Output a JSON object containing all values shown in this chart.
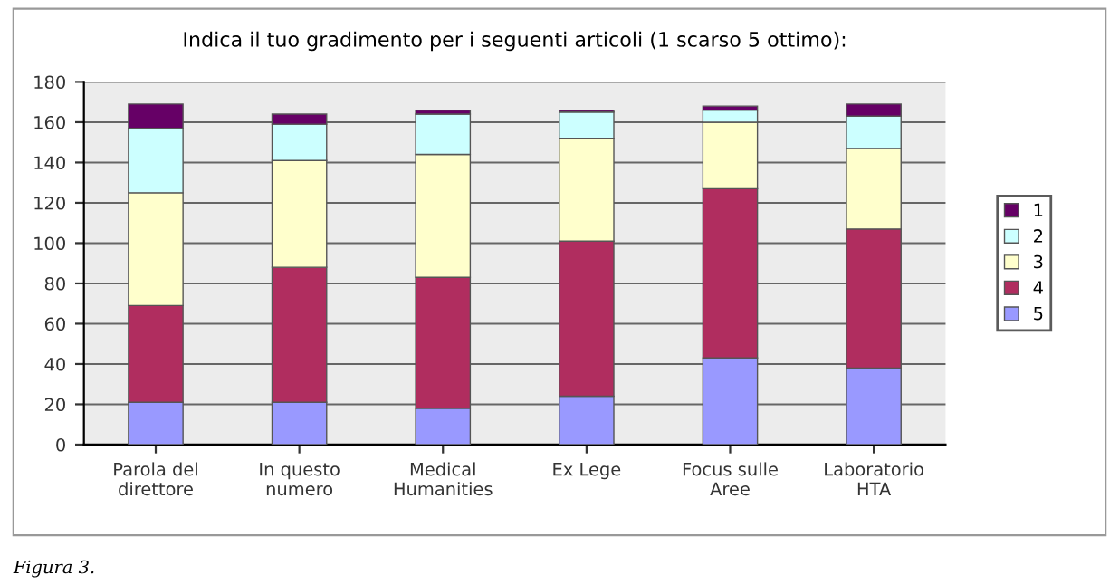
{
  "chart_data": {
    "type": "bar",
    "title": "Indica il tuo gradimento per i seguenti articoli (1 scarso 5 ottimo):",
    "categories": [
      "Parola del\ndirettore",
      "In questo\nnumero",
      "Medical\nHumanities",
      "Ex Lege",
      "Focus sulle\nAree",
      "Laboratorio\nHTA"
    ],
    "series": [
      {
        "name": "5",
        "color": "#9999ff",
        "values": [
          21,
          21,
          18,
          24,
          43,
          38
        ]
      },
      {
        "name": "4",
        "color": "#b02d5f",
        "values": [
          48,
          67,
          65,
          77,
          84,
          69
        ]
      },
      {
        "name": "3",
        "color": "#ffffcc",
        "values": [
          56,
          53,
          61,
          51,
          33,
          40
        ]
      },
      {
        "name": "2",
        "color": "#ccffff",
        "values": [
          32,
          18,
          20,
          13,
          6,
          16
        ]
      },
      {
        "name": "1",
        "color": "#660066",
        "values": [
          12,
          5,
          2,
          1,
          2,
          6
        ]
      }
    ],
    "stacked": true,
    "ylim": [
      0,
      180
    ],
    "yticks": [
      0,
      20,
      40,
      60,
      80,
      100,
      120,
      140,
      160,
      180
    ],
    "grid": "y",
    "legend": "right",
    "annotations": [
      "Figura 3."
    ]
  }
}
